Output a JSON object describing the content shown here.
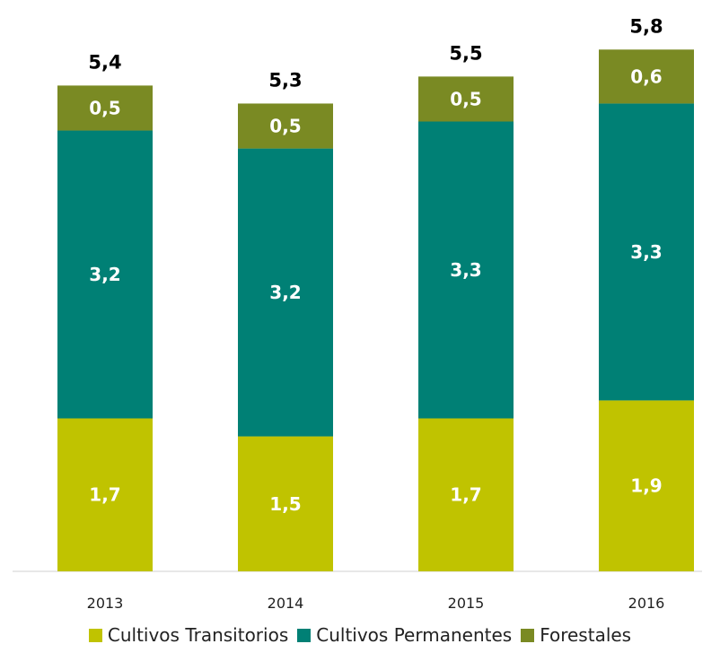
{
  "chart_data": {
    "type": "bar",
    "stacked": true,
    "categories": [
      "2013",
      "2014",
      "2015",
      "2016"
    ],
    "series": [
      {
        "name": "Cultivos Transitorios",
        "values": [
          1.7,
          1.5,
          1.7,
          1.9
        ],
        "labels": [
          "1,7",
          "1,5",
          "1,7",
          "1,9"
        ],
        "color": "#c0c300"
      },
      {
        "name": "Cultivos Permanentes",
        "values": [
          3.2,
          3.2,
          3.3,
          3.3
        ],
        "labels": [
          "3,2",
          "3,2",
          "3,3",
          "3,3"
        ],
        "color": "#008075"
      },
      {
        "name": "Forestales",
        "values": [
          0.5,
          0.5,
          0.5,
          0.6
        ],
        "labels": [
          "0,5",
          "0,5",
          "0,5",
          "0,6"
        ],
        "color": "#7a8a23"
      }
    ],
    "totals": [
      5.4,
      5.3,
      5.5,
      5.8
    ],
    "total_labels": [
      "5,4",
      "5,3",
      "5,5",
      "5,8"
    ],
    "title": "",
    "xlabel": "",
    "ylabel": "",
    "ylim": [
      0,
      5.8
    ],
    "grid": false,
    "legend_position": "bottom"
  }
}
